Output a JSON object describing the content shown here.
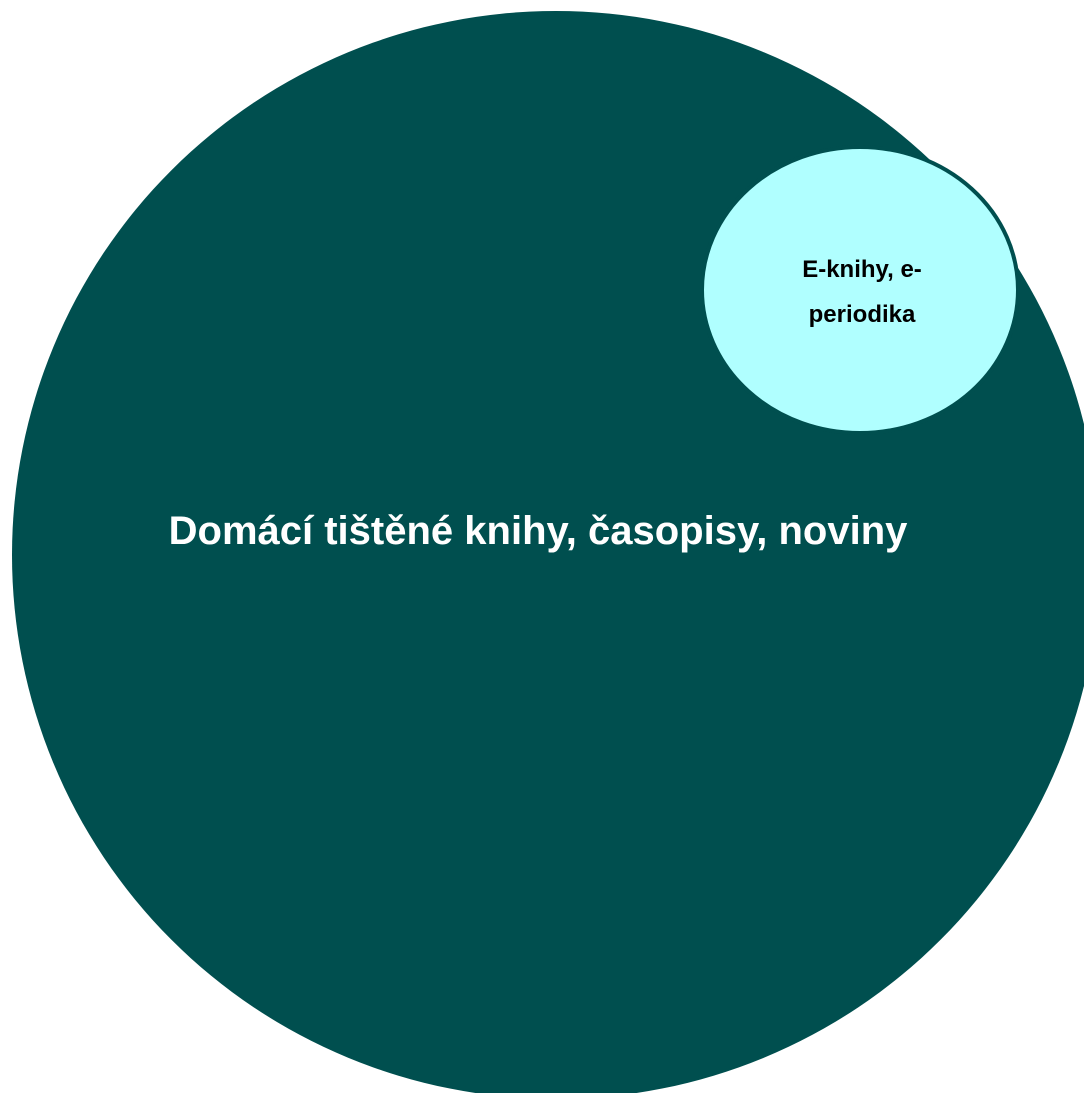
{
  "diagram": {
    "outer_set": {
      "label": "Domácí tištěné knihy, časopisy, noviny",
      "fill": "#004f4f"
    },
    "inner_set": {
      "label_line1": "E-knihy, e-",
      "label_line2": "periodika",
      "fill": "#b0ffff",
      "stroke": "#004f4f"
    }
  }
}
